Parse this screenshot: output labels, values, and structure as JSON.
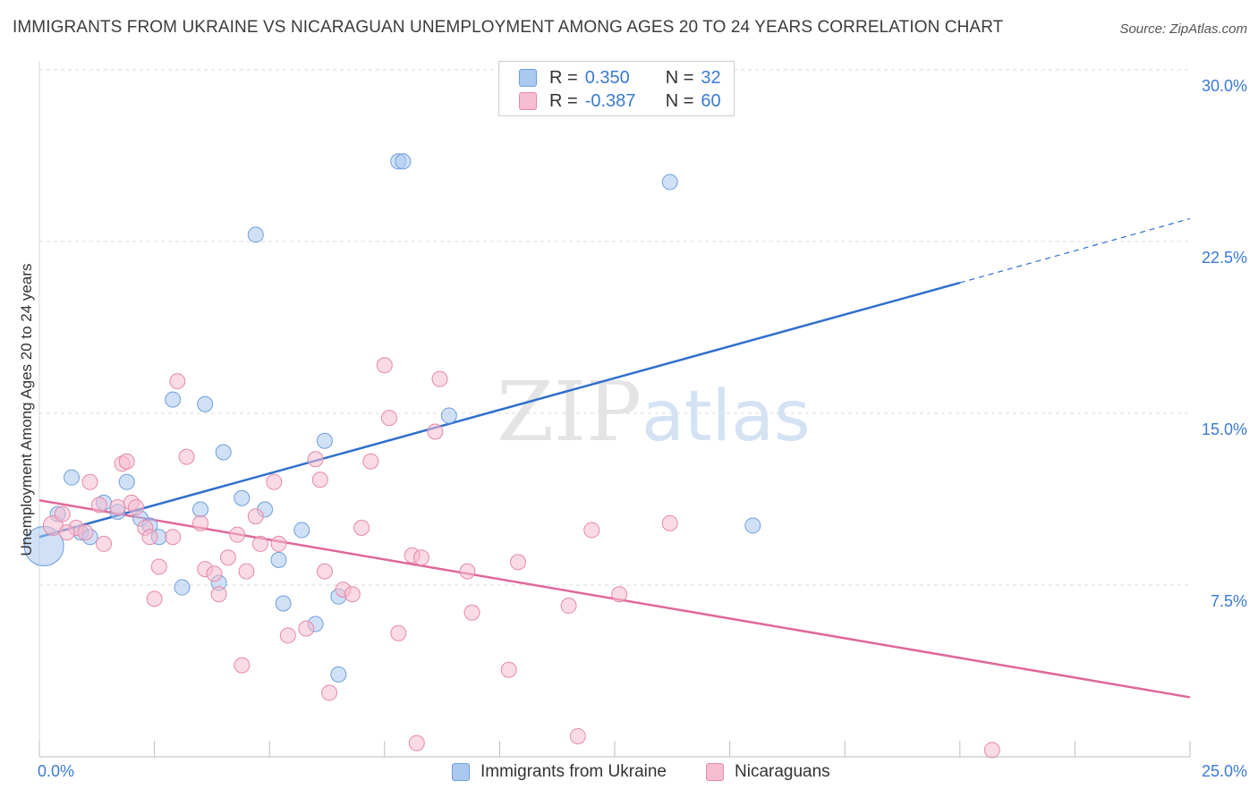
{
  "title": "IMMIGRANTS FROM UKRAINE VS NICARAGUAN UNEMPLOYMENT AMONG AGES 20 TO 24 YEARS CORRELATION CHART",
  "source": "Source: ZipAtlas.com",
  "watermark": "ZIPatlas",
  "colors": {
    "blue_fill": "#aac8f0",
    "blue_stroke": "#6f9fdc",
    "blue_line": "#2f6fce",
    "pink_fill": "#f6bcd0",
    "pink_stroke": "#e58aaa",
    "pink_line": "#e0679a",
    "accent_text": "#3a7bd5",
    "grid": "#d8d8d8"
  },
  "legend_top": {
    "rows": [
      {
        "r_label": "R =",
        "r_value": "0.350",
        "n_label": "N =",
        "n_value": "32",
        "color": "blue"
      },
      {
        "r_label": "R =",
        "r_value": "-0.387",
        "n_label": "N =",
        "n_value": "60",
        "color": "pink"
      }
    ]
  },
  "legend_bottom": [
    "Immigrants from Ukraine",
    "Nicaraguans"
  ],
  "chart_data": {
    "type": "scatter",
    "xlabel": "",
    "ylabel": "Unemployment Among Ages 20 to 24 years",
    "xlim": [
      0,
      25
    ],
    "ylim": [
      0,
      30
    ],
    "x_tick_labels": [
      "0.0%",
      "25.0%"
    ],
    "y_ticks": [
      7.5,
      15.0,
      22.5,
      30.0
    ],
    "y_tick_labels": [
      "7.5%",
      "15.0%",
      "22.5%",
      "30.0%"
    ],
    "x_minor_ticks": [
      0,
      2.5,
      5,
      7.5,
      10,
      12.5,
      15,
      17.5,
      20,
      22.5,
      25
    ],
    "grid": true,
    "legend_position": "top-center",
    "series": [
      {
        "name": "Immigrants from Ukraine",
        "color": "blue",
        "points": [
          [
            0.1,
            9.2,
            14
          ],
          [
            0.4,
            10.6,
            9
          ],
          [
            0.7,
            12.2,
            9
          ],
          [
            0.9,
            9.8,
            9
          ],
          [
            1.1,
            9.6,
            9
          ],
          [
            1.4,
            11.1,
            9
          ],
          [
            1.7,
            10.7,
            9
          ],
          [
            1.9,
            12.0,
            9
          ],
          [
            2.2,
            10.4,
            9
          ],
          [
            2.4,
            10.1,
            9
          ],
          [
            2.6,
            9.6,
            9
          ],
          [
            2.9,
            15.6,
            9
          ],
          [
            3.1,
            7.4,
            9
          ],
          [
            3.5,
            10.8,
            9
          ],
          [
            3.6,
            15.4,
            9
          ],
          [
            3.9,
            7.6,
            9
          ],
          [
            4.0,
            13.3,
            9
          ],
          [
            4.4,
            11.3,
            9
          ],
          [
            4.7,
            22.8,
            9
          ],
          [
            4.9,
            10.8,
            9
          ],
          [
            5.2,
            8.6,
            9
          ],
          [
            5.3,
            6.7,
            9
          ],
          [
            5.7,
            9.9,
            9
          ],
          [
            6.0,
            5.8,
            9
          ],
          [
            6.2,
            13.8,
            9
          ],
          [
            6.5,
            7.0,
            9
          ],
          [
            6.5,
            3.6,
            9
          ],
          [
            7.8,
            26.0,
            9
          ],
          [
            7.9,
            26.0,
            9
          ],
          [
            8.9,
            14.9,
            9
          ],
          [
            13.7,
            25.1,
            9
          ],
          [
            15.5,
            10.1,
            9
          ]
        ],
        "trend": {
          "x0": 0,
          "y0": 9.6,
          "x1": 20,
          "y1": 20.7,
          "dash_to_x": 25,
          "dash_to_y": 23.5
        }
      },
      {
        "name": "Nicaraguans",
        "color": "pink",
        "points": [
          [
            0.3,
            10.1,
            11
          ],
          [
            0.5,
            10.6,
            9
          ],
          [
            0.8,
            10.0,
            9
          ],
          [
            1.0,
            9.8,
            9
          ],
          [
            1.1,
            12.0,
            9
          ],
          [
            1.3,
            11.0,
            9
          ],
          [
            1.4,
            9.3,
            9
          ],
          [
            1.7,
            10.9,
            9
          ],
          [
            1.8,
            12.8,
            9
          ],
          [
            1.9,
            12.9,
            9
          ],
          [
            2.0,
            11.1,
            9
          ],
          [
            2.1,
            10.9,
            9
          ],
          [
            2.3,
            10.0,
            9
          ],
          [
            2.4,
            9.6,
            9
          ],
          [
            2.5,
            6.9,
            9
          ],
          [
            2.6,
            8.3,
            9
          ],
          [
            2.9,
            9.6,
            9
          ],
          [
            3.0,
            16.4,
            9
          ],
          [
            3.2,
            13.1,
            9
          ],
          [
            3.5,
            10.2,
            9
          ],
          [
            3.6,
            8.2,
            9
          ],
          [
            3.8,
            8.0,
            9
          ],
          [
            3.9,
            7.1,
            9
          ],
          [
            4.1,
            8.7,
            9
          ],
          [
            4.3,
            9.7,
            9
          ],
          [
            4.4,
            4.0,
            9
          ],
          [
            4.5,
            8.1,
            9
          ],
          [
            4.7,
            10.5,
            9
          ],
          [
            4.8,
            9.3,
            9
          ],
          [
            5.1,
            12.0,
            9
          ],
          [
            5.2,
            9.3,
            9
          ],
          [
            5.4,
            5.3,
            9
          ],
          [
            5.8,
            5.6,
            9
          ],
          [
            6.0,
            13.0,
            9
          ],
          [
            6.1,
            12.1,
            9
          ],
          [
            6.2,
            8.1,
            9
          ],
          [
            6.3,
            2.8,
            9
          ],
          [
            6.6,
            7.3,
            9
          ],
          [
            6.8,
            7.1,
            9
          ],
          [
            7.0,
            10.0,
            9
          ],
          [
            7.2,
            12.9,
            9
          ],
          [
            7.5,
            17.1,
            9
          ],
          [
            7.6,
            14.8,
            9
          ],
          [
            7.8,
            5.4,
            9
          ],
          [
            8.1,
            8.8,
            9
          ],
          [
            8.2,
            0.6,
            9
          ],
          [
            8.3,
            8.7,
            9
          ],
          [
            8.6,
            14.2,
            9
          ],
          [
            8.7,
            16.5,
            9
          ],
          [
            9.3,
            8.1,
            9
          ],
          [
            9.4,
            6.3,
            9
          ],
          [
            10.2,
            3.8,
            9
          ],
          [
            10.4,
            8.5,
            9
          ],
          [
            11.5,
            6.6,
            9
          ],
          [
            11.7,
            0.9,
            9
          ],
          [
            12.0,
            9.9,
            9
          ],
          [
            12.6,
            7.1,
            9
          ],
          [
            13.7,
            10.2,
            9
          ],
          [
            20.7,
            0.3,
            9
          ],
          [
            0.6,
            9.8,
            9
          ]
        ],
        "trend": {
          "x0": 0,
          "y0": 11.2,
          "x1": 25,
          "y1": 2.6
        }
      }
    ]
  }
}
